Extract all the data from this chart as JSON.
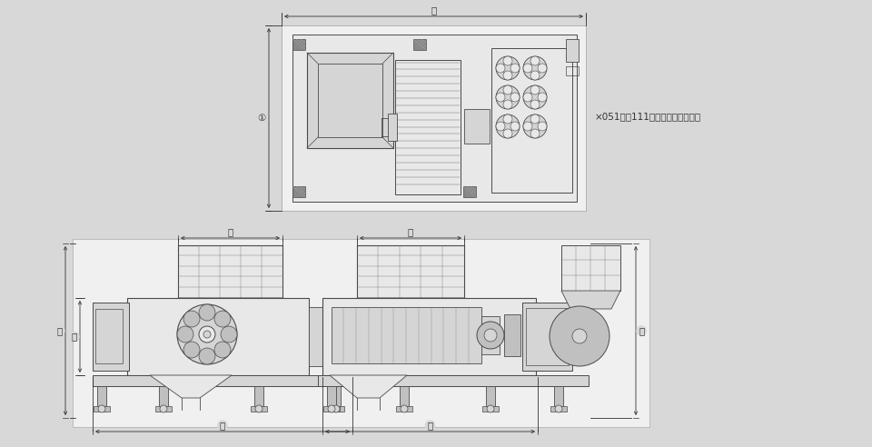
{
  "bg_color": "#d8d8d8",
  "panel_color": "#f0f0f0",
  "line_color": "#4a4a4a",
  "dim_color": "#333333",
  "fill_light": "#e8e8e8",
  "fill_mid": "#d5d5d5",
  "fill_dark": "#c0c0c0",
  "note_text": "×051及び111は形が異なります。",
  "label_H": "ⓗ",
  "label_I": "①",
  "label_A": "Ⓐ",
  "label_B": "Ⓑ",
  "label_C": "Ⓒ",
  "label_D": "Ⓓ",
  "label_E": "Ⓔ",
  "label_F": "Ⓕ",
  "label_G": "Ⓖ",
  "figsize": [
    9.6,
    4.92
  ],
  "dpi": 100
}
